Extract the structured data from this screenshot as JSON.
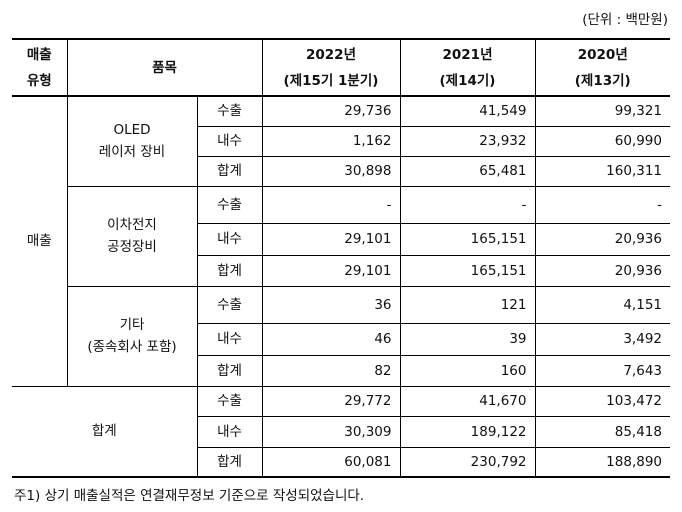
{
  "unit_note": "(단위 : 백만원)",
  "table": {
    "header": {
      "type": [
        "매출",
        "유형"
      ],
      "item": "품목",
      "years": [
        {
          "year": "2022년",
          "period": "(제15기 1분기)"
        },
        {
          "year": "2021년",
          "period": "(제14기)"
        },
        {
          "year": "2020년",
          "period": "(제13기)"
        }
      ]
    },
    "groups": [
      {
        "type": "매출",
        "items": [
          {
            "label": [
              "OLED",
              "레이저 장비"
            ],
            "rows": [
              {
                "kind": "수출",
                "values": [
                  "29,736",
                  "41,549",
                  "99,321"
                ]
              },
              {
                "kind": "내수",
                "values": [
                  "1,162",
                  "23,932",
                  "60,990"
                ]
              },
              {
                "kind": "합계",
                "values": [
                  "30,898",
                  "65,481",
                  "160,311"
                ]
              }
            ]
          },
          {
            "label": [
              "이차전지",
              "공정장비"
            ],
            "rows": [
              {
                "kind": "수출",
                "values": [
                  "-",
                  "-",
                  "-"
                ]
              },
              {
                "kind": "내수",
                "values": [
                  "29,101",
                  "165,151",
                  "20,936"
                ]
              },
              {
                "kind": "합계",
                "values": [
                  "29,101",
                  "165,151",
                  "20,936"
                ]
              }
            ]
          },
          {
            "label": [
              "기타",
              "(종속회사 포함)"
            ],
            "rows": [
              {
                "kind": "수출",
                "values": [
                  "36",
                  "121",
                  "4,151"
                ]
              },
              {
                "kind": "내수",
                "values": [
                  "46",
                  "39",
                  "3,492"
                ]
              },
              {
                "kind": "합계",
                "values": [
                  "82",
                  "160",
                  "7,643"
                ]
              }
            ]
          }
        ]
      },
      {
        "type": "합계",
        "items": [
          {
            "label": [],
            "rows": [
              {
                "kind": "수출",
                "values": [
                  "29,772",
                  "41,670",
                  "103,472"
                ]
              },
              {
                "kind": "내수",
                "values": [
                  "30,309",
                  "189,122",
                  "85,418"
                ]
              },
              {
                "kind": "합계",
                "values": [
                  "60,081",
                  "230,792",
                  "188,890"
                ]
              }
            ]
          }
        ]
      }
    ]
  },
  "footnote": "주1) 상기 매출실적은 연결재무정보 기준으로 작성되었습니다."
}
